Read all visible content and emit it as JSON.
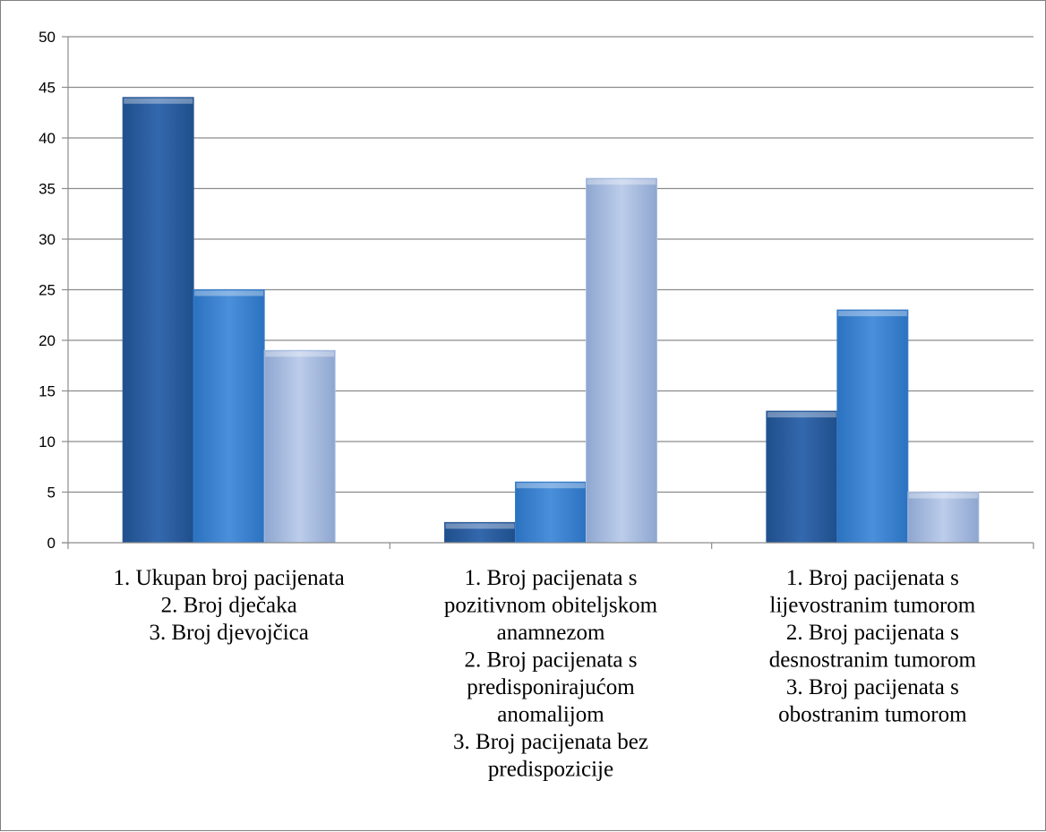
{
  "chart_data": {
    "type": "bar",
    "title": "",
    "xlabel": "",
    "ylabel": "",
    "ylim": [
      0,
      50
    ],
    "yticks": [
      0,
      5,
      10,
      15,
      20,
      25,
      30,
      35,
      40,
      45,
      50
    ],
    "grid": true,
    "legend": "none",
    "categories": [
      [
        "1. Ukupan broj pacijenata",
        "2. Broj dječaka",
        "3. Broj djevojčica"
      ],
      [
        "1. Broj pacijenata s",
        "pozitivnom obiteljskom",
        "anamnezom",
        "2. Broj pacijenata s",
        "predisponirajućom",
        "anomalijom",
        "3. Broj pacijenata bez",
        "predispozicije"
      ],
      [
        "1. Broj pacijenata s",
        "lijevostranim tumorom",
        "2. Broj pacijenata s",
        "desnostranim tumorom",
        "3. Broj pacijenata s",
        "obostranim tumorom"
      ]
    ],
    "series": [
      {
        "values": [
          44,
          2,
          13
        ],
        "color": "#2E5C9A"
      },
      {
        "values": [
          25,
          6,
          23
        ],
        "color": "#3A7FCC"
      },
      {
        "values": [
          19,
          36,
          5
        ],
        "color": "#A9BEE0"
      }
    ]
  }
}
